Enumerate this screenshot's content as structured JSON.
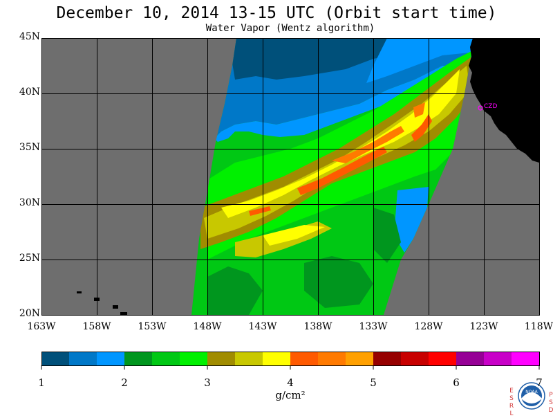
{
  "header": {
    "title": "December 10, 2014  13-15 UTC  (Orbit start time)",
    "subtitle": "Water Vapor (Wentz algorithm)"
  },
  "map": {
    "lat_labels": [
      "45N",
      "40N",
      "35N",
      "30N",
      "25N",
      "20N"
    ],
    "lon_labels": [
      "163W",
      "158W",
      "153W",
      "148W",
      "143W",
      "138W",
      "133W",
      "128W",
      "123W",
      "118W"
    ],
    "station_label": "CZD",
    "colors": {
      "no_data": "#6e6e6e",
      "land": "#000000",
      "grid": "#000000",
      "station": "#ff00ff"
    }
  },
  "colorbar": {
    "colors": [
      "#00507a",
      "#0078c8",
      "#0096ff",
      "#00961e",
      "#00c814",
      "#00f000",
      "#a08c00",
      "#c8c800",
      "#ffff00",
      "#ff5a00",
      "#ff7a00",
      "#ffa000",
      "#960000",
      "#c80000",
      "#ff0000",
      "#960096",
      "#c800c8",
      "#ff00ff"
    ],
    "tick_labels": [
      "1",
      "2",
      "3",
      "4",
      "5",
      "6",
      "7"
    ],
    "units": "g/cm²"
  },
  "logo": {
    "left_letters": [
      "E",
      "S",
      "R",
      "L"
    ],
    "right_letters": [
      "P",
      "S",
      "D"
    ],
    "emblem_text": "NOAA"
  }
}
